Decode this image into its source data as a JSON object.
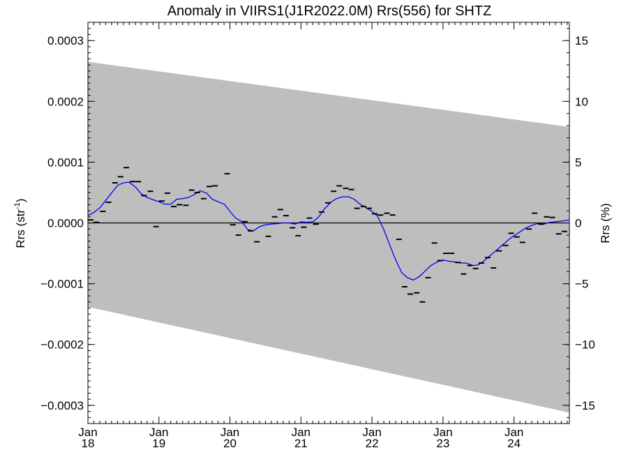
{
  "chart_data": {
    "type": "scatter",
    "title": "Anomaly in VIIRS1(J1R2022.0M) Rrs(556) for SHTZ",
    "ylabel_left": {
      "base": "Rrs (str",
      "sup": "-1",
      "close": ")"
    },
    "ylabel_right": "Rrs (%)",
    "xlim": [
      2018.0,
      2024.78
    ],
    "ylim": [
      -0.00033,
      0.00033
    ],
    "ylim_right": [
      -16.5,
      16.5
    ],
    "grid": false,
    "x_ticks": [
      {
        "x": 2018,
        "month": "Jan",
        "year": "18"
      },
      {
        "x": 2019,
        "month": "Jan",
        "year": "19"
      },
      {
        "x": 2020,
        "month": "Jan",
        "year": "20"
      },
      {
        "x": 2021,
        "month": "Jan",
        "year": "21"
      },
      {
        "x": 2022,
        "month": "Jan",
        "year": "22"
      },
      {
        "x": 2023,
        "month": "Jan",
        "year": "23"
      },
      {
        "x": 2024,
        "month": "Jan",
        "year": "24"
      }
    ],
    "y_ticks_left": [
      {
        "v": 0.0003,
        "label": "0.0003"
      },
      {
        "v": 0.0002,
        "label": "0.0002"
      },
      {
        "v": 0.0001,
        "label": "0.0001"
      },
      {
        "v": 0.0,
        "label": "0.0000"
      },
      {
        "v": -0.0001,
        "label": "−0.0001"
      },
      {
        "v": -0.0002,
        "label": "−0.0002"
      },
      {
        "v": -0.0003,
        "label": "−0.0003"
      }
    ],
    "y_ticks_right": [
      {
        "v": 15,
        "label": "15"
      },
      {
        "v": 10,
        "label": "10"
      },
      {
        "v": 5,
        "label": "5"
      },
      {
        "v": 0,
        "label": "0"
      },
      {
        "v": -5,
        "label": "−5"
      },
      {
        "v": -10,
        "label": "−10"
      },
      {
        "v": -15,
        "label": "−15"
      }
    ],
    "colors": {
      "band": "#bebebe",
      "smooth_line": "#0000ff",
      "markers": "#000000",
      "zero_line": "#000000"
    },
    "uncertainty_band": {
      "upper": [
        [
          2018.0,
          0.000265
        ],
        [
          2024.78,
          0.000158
        ]
      ],
      "lower": [
        [
          2018.0,
          -0.000138
        ],
        [
          2024.78,
          -0.000312
        ]
      ]
    },
    "series": [
      {
        "kind": "monthly_points",
        "points": [
          [
            2018.04,
            5e-06
          ],
          [
            2018.12,
            1e-06
          ],
          [
            2018.21,
            1.9e-05
          ],
          [
            2018.29,
            3.4e-05
          ],
          [
            2018.38,
            6.6e-05
          ],
          [
            2018.46,
            7.6e-05
          ],
          [
            2018.54,
            9.1e-05
          ],
          [
            2018.63,
            6.8e-05
          ],
          [
            2018.71,
            6.8e-05
          ],
          [
            2018.79,
            4.5e-05
          ],
          [
            2018.88,
            5.2e-05
          ],
          [
            2018.96,
            -6e-06
          ],
          [
            2019.04,
            3.6e-05
          ],
          [
            2019.12,
            4.9e-05
          ],
          [
            2019.21,
            2.7e-05
          ],
          [
            2019.29,
            3e-05
          ],
          [
            2019.38,
            2.9e-05
          ],
          [
            2019.46,
            5.4e-05
          ],
          [
            2019.54,
            5e-05
          ],
          [
            2019.63,
            4e-05
          ],
          [
            2019.71,
            6e-05
          ],
          [
            2019.79,
            6.1e-05
          ],
          [
            2019.96,
            8.1e-05
          ],
          [
            2020.04,
            -3e-06
          ],
          [
            2020.12,
            -2e-05
          ],
          [
            2020.21,
            2e-06
          ],
          [
            2020.29,
            -1.3e-05
          ],
          [
            2020.38,
            -3.1e-05
          ],
          [
            2020.54,
            -2.2e-05
          ],
          [
            2020.63,
            1e-05
          ],
          [
            2020.71,
            2.2e-05
          ],
          [
            2020.79,
            1.2e-05
          ],
          [
            2020.88,
            -8e-06
          ],
          [
            2020.96,
            -2.1e-05
          ],
          [
            2021.04,
            -7e-06
          ],
          [
            2021.12,
            8e-06
          ],
          [
            2021.21,
            -2e-06
          ],
          [
            2021.29,
            1.8e-05
          ],
          [
            2021.38,
            3.3e-05
          ],
          [
            2021.46,
            5.2e-05
          ],
          [
            2021.54,
            6.1e-05
          ],
          [
            2021.63,
            5.7e-05
          ],
          [
            2021.71,
            5.5e-05
          ],
          [
            2021.79,
            2.4e-05
          ],
          [
            2021.88,
            2.7e-05
          ],
          [
            2021.96,
            2.4e-05
          ],
          [
            2022.04,
            1.5e-05
          ],
          [
            2022.12,
            1.3e-05
          ],
          [
            2022.21,
            1.6e-05
          ],
          [
            2022.29,
            1.3e-05
          ],
          [
            2022.38,
            -2.7e-05
          ],
          [
            2022.46,
            -0.000105
          ],
          [
            2022.54,
            -0.000117
          ],
          [
            2022.63,
            -0.000115
          ],
          [
            2022.71,
            -0.00013
          ],
          [
            2022.79,
            -9e-05
          ],
          [
            2022.88,
            -3.3e-05
          ],
          [
            2022.96,
            -6.2e-05
          ],
          [
            2023.04,
            -5e-05
          ],
          [
            2023.12,
            -5e-05
          ],
          [
            2023.21,
            -6.5e-05
          ],
          [
            2023.29,
            -8.4e-05
          ],
          [
            2023.38,
            -7e-05
          ],
          [
            2023.46,
            -7.5e-05
          ],
          [
            2023.54,
            -6.6e-05
          ],
          [
            2023.63,
            -5.7e-05
          ],
          [
            2023.71,
            -7.4e-05
          ],
          [
            2023.79,
            -4.6e-05
          ],
          [
            2023.88,
            -3.7e-05
          ],
          [
            2023.96,
            -1.7e-05
          ],
          [
            2024.04,
            -2.3e-05
          ],
          [
            2024.12,
            -3.2e-05
          ],
          [
            2024.21,
            -1e-05
          ],
          [
            2024.29,
            1.6e-05
          ],
          [
            2024.38,
            -2e-06
          ],
          [
            2024.46,
            1e-05
          ],
          [
            2024.54,
            9e-06
          ],
          [
            2024.63,
            -1.8e-05
          ],
          [
            2024.71,
            -1.4e-05
          ]
        ]
      },
      {
        "kind": "smoothed_line",
        "points": [
          [
            2018.0,
            1.2e-05
          ],
          [
            2018.08,
            1.7e-05
          ],
          [
            2018.17,
            2.5e-05
          ],
          [
            2018.25,
            3.7e-05
          ],
          [
            2018.33,
            4.9e-05
          ],
          [
            2018.42,
            6.2e-05
          ],
          [
            2018.5,
            6.6e-05
          ],
          [
            2018.58,
            6.7e-05
          ],
          [
            2018.67,
            5.9e-05
          ],
          [
            2018.75,
            4.8e-05
          ],
          [
            2018.83,
            4.2e-05
          ],
          [
            2018.92,
            3.8e-05
          ],
          [
            2019.0,
            3.5e-05
          ],
          [
            2019.08,
            3.1e-05
          ],
          [
            2019.17,
            3.1e-05
          ],
          [
            2019.25,
            3.9e-05
          ],
          [
            2019.33,
            4e-05
          ],
          [
            2019.42,
            4.2e-05
          ],
          [
            2019.5,
            4.7e-05
          ],
          [
            2019.58,
            5.3e-05
          ],
          [
            2019.67,
            4.9e-05
          ],
          [
            2019.75,
            3.9e-05
          ],
          [
            2019.83,
            3.5e-05
          ],
          [
            2019.92,
            3.1e-05
          ],
          [
            2020.0,
            1.9e-05
          ],
          [
            2020.08,
            8e-06
          ],
          [
            2020.17,
            2e-06
          ],
          [
            2020.25,
            -1.1e-05
          ],
          [
            2020.33,
            -1.3e-05
          ],
          [
            2020.42,
            -6e-06
          ],
          [
            2020.5,
            -3e-06
          ],
          [
            2020.58,
            -2e-06
          ],
          [
            2020.67,
            -1e-06
          ],
          [
            2020.75,
            0.0
          ],
          [
            2020.83,
            0.0
          ],
          [
            2020.92,
            -2e-06
          ],
          [
            2021.0,
            2e-06
          ],
          [
            2021.08,
            1e-06
          ],
          [
            2021.17,
            2e-06
          ],
          [
            2021.25,
            1e-05
          ],
          [
            2021.33,
            2.3e-05
          ],
          [
            2021.42,
            3.4e-05
          ],
          [
            2021.5,
            4e-05
          ],
          [
            2021.58,
            4.3e-05
          ],
          [
            2021.67,
            4.3e-05
          ],
          [
            2021.75,
            3.9e-05
          ],
          [
            2021.83,
            3.1e-05
          ],
          [
            2021.92,
            2.5e-05
          ],
          [
            2022.0,
            1.9e-05
          ],
          [
            2022.08,
            1.1e-05
          ],
          [
            2022.17,
            -1.2e-05
          ],
          [
            2022.25,
            -3.6e-05
          ],
          [
            2022.33,
            -6e-05
          ],
          [
            2022.42,
            -8.2e-05
          ],
          [
            2022.5,
            -9e-05
          ],
          [
            2022.58,
            -9.4e-05
          ],
          [
            2022.67,
            -8.8e-05
          ],
          [
            2022.75,
            -7.9e-05
          ],
          [
            2022.83,
            -7e-05
          ],
          [
            2022.92,
            -6.4e-05
          ],
          [
            2023.0,
            -6.1e-05
          ],
          [
            2023.08,
            -6.3e-05
          ],
          [
            2023.17,
            -6.4e-05
          ],
          [
            2023.25,
            -6.6e-05
          ],
          [
            2023.33,
            -6.6e-05
          ],
          [
            2023.42,
            -7e-05
          ],
          [
            2023.5,
            -6.9e-05
          ],
          [
            2023.58,
            -6.2e-05
          ],
          [
            2023.67,
            -5.3e-05
          ],
          [
            2023.75,
            -4.5e-05
          ],
          [
            2023.83,
            -3.7e-05
          ],
          [
            2023.92,
            -2.8e-05
          ],
          [
            2024.0,
            -2.1e-05
          ],
          [
            2024.08,
            -1.5e-05
          ],
          [
            2024.17,
            -8e-06
          ],
          [
            2024.25,
            -4e-06
          ],
          [
            2024.33,
            -1e-06
          ],
          [
            2024.42,
            -2e-06
          ],
          [
            2024.5,
            1e-06
          ],
          [
            2024.58,
            2e-06
          ],
          [
            2024.67,
            3e-06
          ],
          [
            2024.78,
            5e-06
          ]
        ]
      }
    ]
  }
}
